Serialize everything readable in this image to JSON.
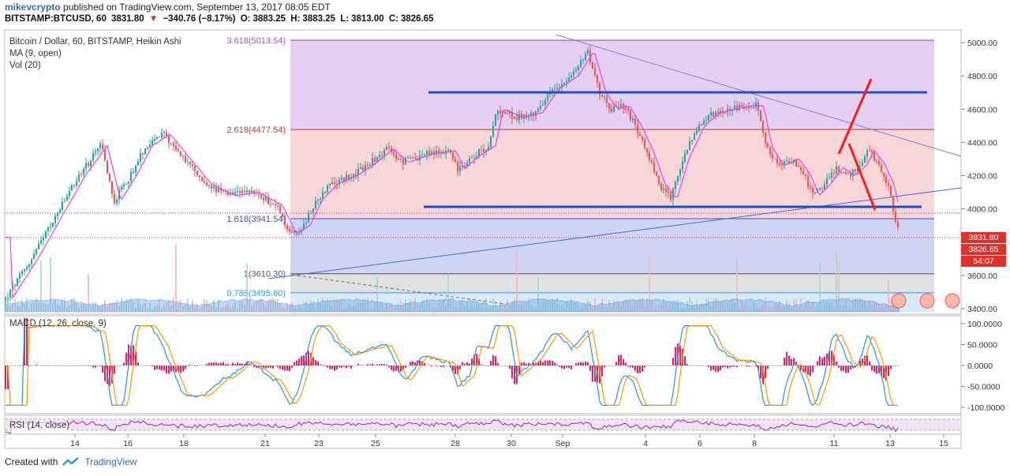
{
  "header": {
    "user": "mikevcrypto",
    "published_text": " published on TradingView.com, September 13, 2017 08:05 EDT",
    "symbol_interval": "BITSTAMP:BTCUSD, 60",
    "last": "3831.80",
    "change_arrow": "▼",
    "change": "−340.76 (−8.17%)",
    "open_label": "O:",
    "open": "3883.25",
    "high_label": "H:",
    "high": "3883.25",
    "low_label": "L:",
    "low": "3813.00",
    "close_label": "C:",
    "close": "3826.65"
  },
  "overlay": {
    "title": "Bitcoin / Dollar, 60, BITSTAMP, Heikin Ashi",
    "ma": "MA (9, open)",
    "vol": "Vol (20)"
  },
  "fib_levels": [
    {
      "label": "3.618(5013.54)",
      "price": 5013.54,
      "color": "#9b59b6"
    },
    {
      "label": "2.618(4477.54)",
      "price": 4477.54,
      "color": "#c0392b"
    },
    {
      "label": "1.618(3941.54)",
      "price": 3941.54,
      "color": "#3f51b5"
    },
    {
      "label": "1(3610.30)",
      "price": 3610.3,
      "color": "#555555"
    },
    {
      "label": "0.786(3495.60)",
      "price": 3495.6,
      "color": "#2a9df4"
    }
  ],
  "price_axis": {
    "ticks": [
      "5000.00",
      "4800.00",
      "4600.00",
      "4400.00",
      "4200.00",
      "4000.00",
      "3600.00",
      "3400.00"
    ],
    "tick_values": [
      5000,
      4800,
      4600,
      4400,
      4200,
      4000,
      3600,
      3400
    ],
    "tags": [
      {
        "text": "3831.80",
        "color": "#e0302c"
      },
      {
        "text": "3826.65",
        "color": "#e0302c"
      },
      {
        "text": "54:07",
        "color": "#e0302c"
      }
    ]
  },
  "macd": {
    "label": "MACD (12, 26, close, 9)",
    "ticks": [
      "100.0000",
      "50.0000",
      "0.0000",
      "-50.0000",
      "-100.0000"
    ],
    "tick_values": [
      100,
      50,
      0,
      -50,
      -100
    ]
  },
  "rsi": {
    "label": "RSI (14, close)"
  },
  "time_axis": {
    "labels": [
      "14",
      "16",
      "18",
      "21",
      "23",
      "25",
      "28",
      "30",
      "Sep",
      "4",
      "6",
      "8",
      "11",
      "13",
      "15"
    ]
  },
  "footer": {
    "created_with": "Created with",
    "brand": "TradingView"
  },
  "colors": {
    "candle_up": "#26a69a",
    "candle_down": "#ef5350",
    "ma_line": "#e040fb",
    "trend_blue": "#1f4fc0",
    "red_marker": "#ff1a1a",
    "macd_line": "#2196f3",
    "signal_line": "#ff9800",
    "hist": "#e91e63"
  }
}
